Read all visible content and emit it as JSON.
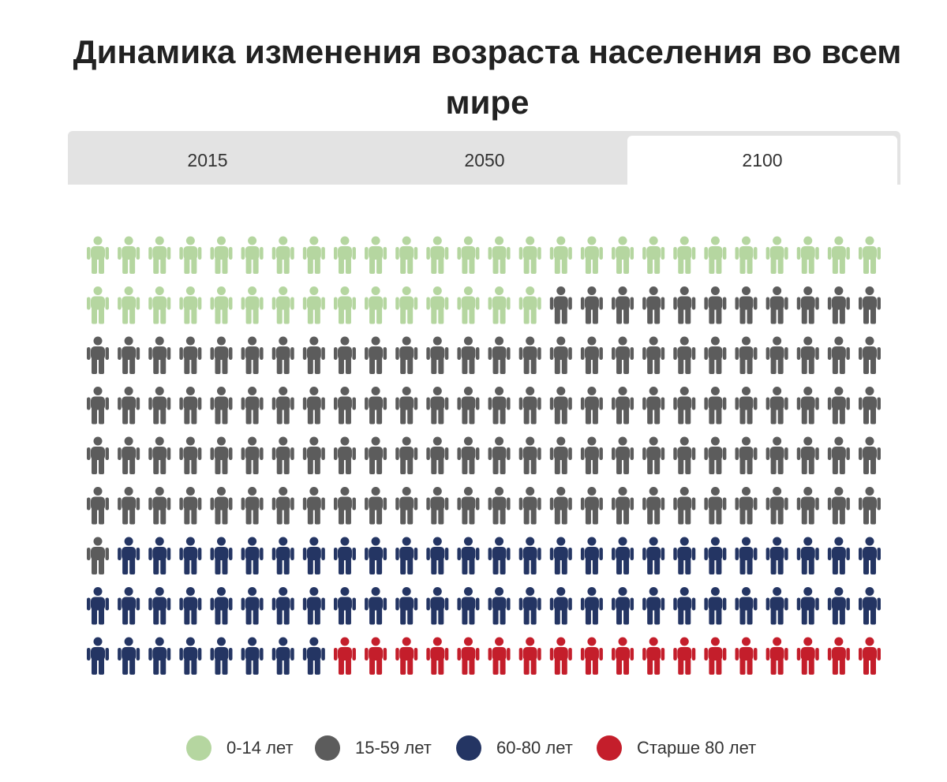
{
  "title": "Динамика изменения возраста населения во всем мире",
  "tabs": [
    {
      "label": "2015",
      "active": false
    },
    {
      "label": "2050",
      "active": false
    },
    {
      "label": "2100",
      "active": true
    }
  ],
  "chart_data": {
    "type": "pictogram",
    "selected_year": "2100",
    "columns": 26,
    "rows": 9,
    "series": [
      {
        "name": "0-14 лет",
        "count": 41,
        "color": "#b5d6a0"
      },
      {
        "name": "15-59 лет",
        "count": 116,
        "color": "#5c5c5c"
      },
      {
        "name": "60-80 лет",
        "count": 59,
        "color": "#243563"
      },
      {
        "name": "Старше 80 лет",
        "count": 18,
        "color": "#c41e2b"
      }
    ],
    "legend_position": "bottom"
  }
}
